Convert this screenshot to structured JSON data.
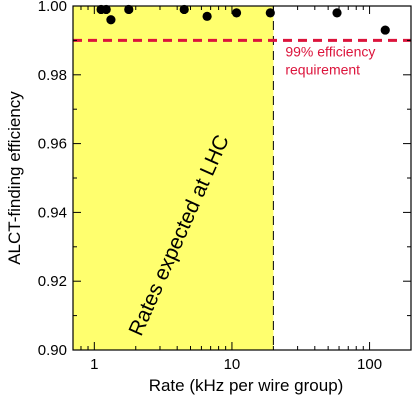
{
  "chart_data": {
    "type": "scatter",
    "xlabel": "Rate (kHz per wire group)",
    "ylabel": "ALCT-finding  efficiency",
    "xscale": "log",
    "xlim": [
      0.7,
      200
    ],
    "ylim": [
      0.9,
      1.0
    ],
    "xticks": [
      {
        "value": 1,
        "label": "1"
      },
      {
        "value": 10,
        "label": "10"
      },
      {
        "value": 100,
        "label": "100"
      }
    ],
    "yticks": [
      {
        "value": 0.9,
        "label": "0.90"
      },
      {
        "value": 0.92,
        "label": "0.92"
      },
      {
        "value": 0.94,
        "label": "0.94"
      },
      {
        "value": 0.96,
        "label": "0.96"
      },
      {
        "value": 0.98,
        "label": "0.98"
      },
      {
        "value": 1.0,
        "label": "1.00"
      }
    ],
    "grid": false,
    "points": [
      {
        "x": 1.12,
        "y": 0.999
      },
      {
        "x": 1.22,
        "y": 0.999
      },
      {
        "x": 1.32,
        "y": 0.996
      },
      {
        "x": 1.78,
        "y": 0.999
      },
      {
        "x": 4.5,
        "y": 0.999
      },
      {
        "x": 6.6,
        "y": 0.997
      },
      {
        "x": 10.8,
        "y": 0.998
      },
      {
        "x": 19.0,
        "y": 0.998
      },
      {
        "x": 58.0,
        "y": 0.998
      },
      {
        "x": 130.0,
        "y": 0.993
      }
    ],
    "requirement": {
      "y": 0.99,
      "label_line1": "99% efficiency",
      "label_line2": "requirement",
      "color": "#dc143c"
    },
    "expected_region": {
      "x_min": 0.7,
      "x_max": 20,
      "label": "Rates expected at LHC",
      "color": "#ffff6e"
    },
    "point_color": "#000000"
  }
}
